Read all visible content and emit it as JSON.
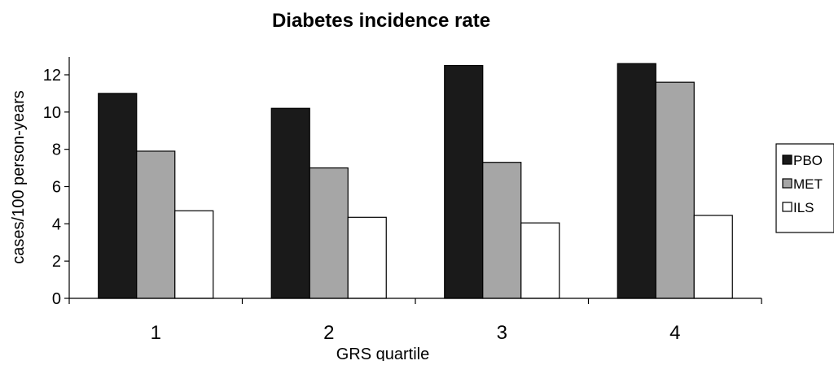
{
  "chart_data": {
    "type": "bar",
    "title": "Diabetes incidence rate",
    "xlabel": "GRS quartile",
    "ylabel": "cases/100 person-years",
    "categories": [
      "1",
      "2",
      "3",
      "4"
    ],
    "ylim": [
      0,
      12
    ],
    "yticks": [
      "0",
      "2",
      "4",
      "6",
      "8",
      "10",
      "12"
    ],
    "grid": false,
    "legend_position": "right",
    "series": [
      {
        "name": "PBO",
        "values": [
          11.0,
          10.2,
          12.5,
          12.6
        ],
        "color": "#1a1a1a"
      },
      {
        "name": "MET",
        "values": [
          7.9,
          7.0,
          7.3,
          11.6
        ],
        "color": "#a6a6a6"
      },
      {
        "name": "ILS",
        "values": [
          4.7,
          4.35,
          4.05,
          4.45
        ],
        "color": "#ffffff"
      }
    ]
  }
}
